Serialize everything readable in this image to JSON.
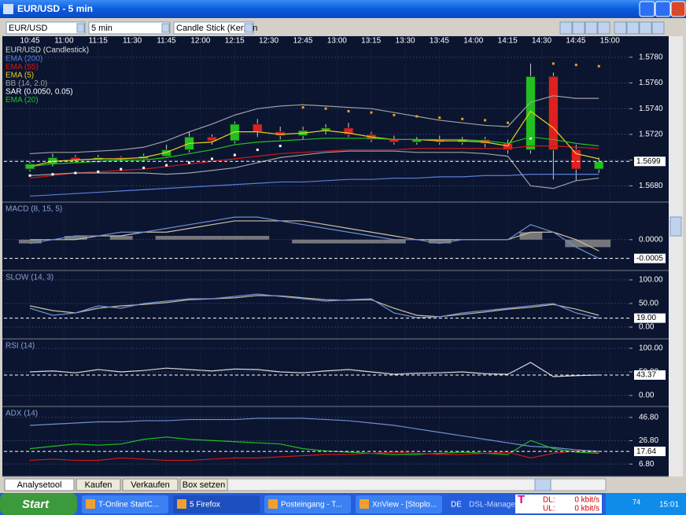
{
  "window": {
    "title": "EUR/USD - 5 min"
  },
  "toolbar": {
    "symbol": "EUR/USD",
    "interval": "5 min",
    "chart_style": "Candle Stick (Kerzen"
  },
  "time_labels": [
    "10:45",
    "11:00",
    "11:15",
    "11:30",
    "11:45",
    "12:00",
    "12:15",
    "12:30",
    "12:45",
    "13:00",
    "13:15",
    "13:30",
    "13:45",
    "14:00",
    "14:15",
    "14:30",
    "14:45",
    "15:00"
  ],
  "tabs": [
    "Analysetool",
    "Kaufen",
    "Verkaufen",
    "Box setzen"
  ],
  "taskbar": {
    "start": "Start",
    "items": [
      "T-Online StartC...",
      "5 Firefox",
      "Posteingang - T...",
      "XnView - [Stoplo..."
    ],
    "lang": "DE",
    "dsl": "DSL-Manager",
    "dl": "DL:",
    "ul": "UL:",
    "dl_rate": "0 kbit/s",
    "ul_rate": "0 kbit/s",
    "signal": "74",
    "clock": "15:01"
  },
  "chart_data": [
    {
      "type": "candlestick",
      "title": "EUR/USD (Candlestick)",
      "up_color": "#20c020",
      "down_color": "#e02020",
      "open": [
        1.5693,
        1.5697,
        1.5702,
        1.57,
        1.5702,
        1.5701,
        1.5703,
        1.5708,
        1.5718,
        1.5715,
        1.5728,
        1.5722,
        1.5719,
        1.5723,
        1.5725,
        1.572,
        1.5716,
        1.5714,
        1.5716,
        1.5714,
        1.5716,
        1.5713,
        1.5708,
        1.5765,
        1.5708,
        1.5693
      ],
      "close": [
        1.5697,
        1.5702,
        1.57,
        1.5702,
        1.5701,
        1.5703,
        1.5708,
        1.5718,
        1.5715,
        1.5728,
        1.5722,
        1.5719,
        1.5723,
        1.5725,
        1.572,
        1.5716,
        1.5714,
        1.5716,
        1.5714,
        1.5716,
        1.5713,
        1.5708,
        1.5765,
        1.5708,
        1.5693,
        1.5699
      ],
      "high": [
        1.5699,
        1.5705,
        1.5704,
        1.5704,
        1.5703,
        1.5705,
        1.5712,
        1.5722,
        1.572,
        1.573,
        1.5732,
        1.5726,
        1.5726,
        1.5728,
        1.5729,
        1.5722,
        1.5719,
        1.5718,
        1.5719,
        1.5718,
        1.5718,
        1.5716,
        1.5775,
        1.5768,
        1.5712,
        1.5702
      ],
      "low": [
        1.5691,
        1.5695,
        1.5698,
        1.5698,
        1.5699,
        1.5699,
        1.5702,
        1.5706,
        1.5712,
        1.5713,
        1.5718,
        1.5716,
        1.5716,
        1.572,
        1.5718,
        1.5714,
        1.5712,
        1.5712,
        1.5712,
        1.5712,
        1.571,
        1.5705,
        1.5705,
        1.5685,
        1.5684,
        1.569
      ],
      "series": [
        {
          "name": "EMA (200)",
          "color": "#5a7fd6",
          "style": "line",
          "values": [
            1.5672,
            1.5673,
            1.5674,
            1.5675,
            1.5676,
            1.5677,
            1.5678,
            1.5679,
            1.568,
            1.5681,
            1.5682,
            1.5683,
            1.5683,
            1.5684,
            1.5685,
            1.5685,
            1.5686,
            1.5686,
            1.5687,
            1.5687,
            1.5688,
            1.5688,
            1.5689,
            1.5689,
            1.5689,
            1.5689
          ]
        },
        {
          "name": "EMA (55)",
          "color": "#d01818",
          "style": "line",
          "values": [
            1.5686,
            1.5688,
            1.569,
            1.5691,
            1.5692,
            1.5693,
            1.5695,
            1.5697,
            1.5699,
            1.5701,
            1.5703,
            1.5705,
            1.5706,
            1.5707,
            1.5708,
            1.5708,
            1.5708,
            1.5709,
            1.5709,
            1.5709,
            1.5709,
            1.5709,
            1.5711,
            1.5711,
            1.571,
            1.5709
          ]
        },
        {
          "name": "EMA (5)",
          "color": "#e8d020",
          "style": "line",
          "values": [
            1.5695,
            1.5699,
            1.57,
            1.5701,
            1.5701,
            1.5702,
            1.5706,
            1.5713,
            1.5714,
            1.5722,
            1.5722,
            1.572,
            1.5721,
            1.5723,
            1.5721,
            1.5718,
            1.5716,
            1.5716,
            1.5715,
            1.5715,
            1.5714,
            1.5711,
            1.5738,
            1.5725,
            1.5705,
            1.5701
          ]
        },
        {
          "name": "BB (14, 2.0)",
          "color": "#a0a0a0",
          "style": "line",
          "values": [
            1.5705,
            1.5706,
            1.5706,
            1.5707,
            1.5708,
            1.571,
            1.5715,
            1.5722,
            1.5728,
            1.5735,
            1.574,
            1.5742,
            1.5743,
            1.5742,
            1.5741,
            1.574,
            1.5737,
            1.5734,
            1.5731,
            1.5729,
            1.5727,
            1.5726,
            1.5745,
            1.575,
            1.5748,
            1.5748
          ],
          "lower": [
            1.5688,
            1.5689,
            1.569,
            1.569,
            1.569,
            1.569,
            1.5689,
            1.569,
            1.5692,
            1.5694,
            1.5698,
            1.5702,
            1.5704,
            1.5706,
            1.5707,
            1.5707,
            1.5707,
            1.5706,
            1.5706,
            1.5706,
            1.5705,
            1.5703,
            1.568,
            1.5678,
            1.5684,
            1.5686
          ]
        },
        {
          "name": "SAR (0.0050, 0.05)",
          "color": "#ffffff",
          "color_above": "#e8a020",
          "style": "dots",
          "values": [
            1.5688,
            1.5689,
            1.569,
            1.5691,
            1.5693,
            1.5694,
            1.5696,
            1.5698,
            1.5701,
            1.5704,
            1.5708,
            1.5711,
            1.5741,
            1.574,
            1.5738,
            1.5737,
            1.5735,
            1.5734,
            1.5733,
            1.5732,
            1.5731,
            1.5729,
            1.5717,
            1.5775,
            1.5774,
            1.5773
          ]
        },
        {
          "name": "EMA (20)",
          "color": "#20c020",
          "style": "line",
          "values": [
            1.5695,
            1.5697,
            1.5698,
            1.5699,
            1.57,
            1.57,
            1.5702,
            1.5705,
            1.5708,
            1.5712,
            1.5714,
            1.5715,
            1.5716,
            1.5717,
            1.5717,
            1.5717,
            1.5716,
            1.5716,
            1.5716,
            1.5716,
            1.5715,
            1.5713,
            1.5718,
            1.5716,
            1.5713,
            1.5711
          ]
        }
      ],
      "ylim": [
        1.5668,
        1.5789
      ],
      "yticks": [
        {
          "value": 1.568,
          "label": "1.5680"
        },
        {
          "value": 1.57,
          "label": "1.5700"
        },
        {
          "value": 1.572,
          "label": "1.5720"
        },
        {
          "value": 1.574,
          "label": "1.5740"
        },
        {
          "value": 1.576,
          "label": "1.5760"
        },
        {
          "value": 1.578,
          "label": "1.5780"
        }
      ],
      "current": {
        "value": 1.5699,
        "label": "1.5699"
      },
      "grid": true
    },
    {
      "type": "line",
      "title": "MACD (8, 15, 5)",
      "title_color": "#8aa0d0",
      "series": [
        {
          "color": "#909090",
          "style": "bar",
          "values": [
            -0.0001,
            0,
            0.0001,
            0,
            0.0001,
            0,
            0.0001,
            0.0001,
            0.0001,
            0.0001,
            0.0001,
            0,
            -0.0001,
            -0.0001,
            -0.0001,
            -0.0001,
            -0.0001,
            0,
            -0.0001,
            0,
            0,
            0,
            0.0002,
            0,
            -0.0002,
            -0.0002
          ]
        },
        {
          "color": "#d0c0a0",
          "style": "line",
          "values": [
            0,
            0,
            0,
            0.0001,
            0.0001,
            0.0002,
            0.0002,
            0.0003,
            0.0004,
            0.0005,
            0.0005,
            0.0005,
            0.0005,
            0.0004,
            0.0003,
            0.0002,
            0.0001,
            0,
            0,
            0,
            0,
            0,
            0.0002,
            0.0002,
            0,
            -0.0003
          ]
        },
        {
          "color": "#6f8fd0",
          "style": "line",
          "values": [
            -0.0001,
            0,
            0.0001,
            0.0001,
            0.0002,
            0.0002,
            0.0003,
            0.0004,
            0.0005,
            0.0006,
            0.0006,
            0.0005,
            0.0004,
            0.0003,
            0.0002,
            0.0001,
            0,
            0,
            -0.0001,
            0,
            0,
            0,
            0.0004,
            0.0002,
            -0.0002,
            -0.0005
          ]
        }
      ],
      "ylim": [
        -0.0008,
        0.00098
      ],
      "yticks": [
        {
          "value": 0,
          "label": "0.0000"
        }
      ],
      "current": {
        "value": -0.0005,
        "label": "-0.0005"
      },
      "grid": true
    },
    {
      "type": "line",
      "title": "SLOW (14, 3)",
      "title_color": "#8aa0d0",
      "series": [
        {
          "color": "#d0c0a0",
          "style": "line",
          "values": [
            45,
            35,
            30,
            40,
            45,
            48,
            52,
            58,
            60,
            62,
            67,
            66,
            62,
            58,
            57,
            58,
            40,
            25,
            22,
            27,
            32,
            38,
            42,
            48,
            38,
            25
          ]
        },
        {
          "color": "#6f8fd0",
          "style": "line",
          "values": [
            40,
            25,
            30,
            45,
            40,
            50,
            55,
            60,
            60,
            65,
            70,
            65,
            60,
            55,
            58,
            60,
            30,
            20,
            22,
            30,
            35,
            40,
            45,
            50,
            30,
            19
          ]
        }
      ],
      "ylim": [
        -23.3,
        118.3
      ],
      "yticks": [
        {
          "value": 0,
          "label": "0.00"
        },
        {
          "value": 50,
          "label": "50.00"
        },
        {
          "value": 100,
          "label": "100.00"
        }
      ],
      "current": {
        "value": 19,
        "label": "19.00"
      },
      "grid": true
    },
    {
      "type": "line",
      "title": "RSI (14)",
      "title_color": "#8aa0d0",
      "series": [
        {
          "color": "#d8d8d8",
          "style": "line",
          "values": [
            50,
            52,
            48,
            55,
            50,
            53,
            58,
            55,
            52,
            56,
            55,
            50,
            48,
            52,
            55,
            50,
            45,
            47,
            48,
            50,
            46,
            45,
            70,
            40,
            42,
            43.37
          ]
        }
      ],
      "ylim": [
        -21.7,
        118.3
      ],
      "yticks": [
        {
          "value": 0,
          "label": "0.00"
        },
        {
          "value": 50,
          "label": "50.00"
        },
        {
          "value": 100,
          "label": "100.00"
        }
      ],
      "current": {
        "value": 43.37,
        "label": "43.37"
      },
      "grid": true
    },
    {
      "type": "line",
      "title": "ADX (14)",
      "title_color": "#8aa0d0",
      "series": [
        {
          "color": "#6f8fd0",
          "style": "line",
          "values": [
            40,
            41,
            42,
            43,
            43,
            44,
            44,
            45,
            45,
            45,
            46,
            46,
            46,
            45,
            44,
            42,
            40,
            37,
            34,
            31,
            28,
            25,
            22,
            21,
            19,
            17.64
          ]
        },
        {
          "color": "#20c020",
          "style": "line",
          "values": [
            20,
            22,
            24,
            23,
            24,
            28,
            30,
            28,
            27,
            26,
            25,
            24,
            20,
            18,
            17,
            16,
            15,
            15,
            16,
            17,
            16,
            15,
            27,
            20,
            17,
            16
          ]
        },
        {
          "color": "#d01818",
          "style": "line",
          "values": [
            10,
            11,
            10,
            10,
            12,
            11,
            10,
            10,
            11,
            12,
            12,
            13,
            14,
            15,
            15,
            16,
            17,
            16,
            15,
            15,
            16,
            17,
            12,
            16,
            18,
            17
          ]
        }
      ],
      "ylim": [
        -3.2,
        55.5
      ],
      "yticks": [
        {
          "value": 6.8,
          "label": "6.80"
        },
        {
          "value": 26.8,
          "label": "26.80"
        },
        {
          "value": 46.8,
          "label": "46.80"
        }
      ],
      "current": {
        "value": 17.64,
        "label": "17.64"
      },
      "grid": true
    }
  ]
}
